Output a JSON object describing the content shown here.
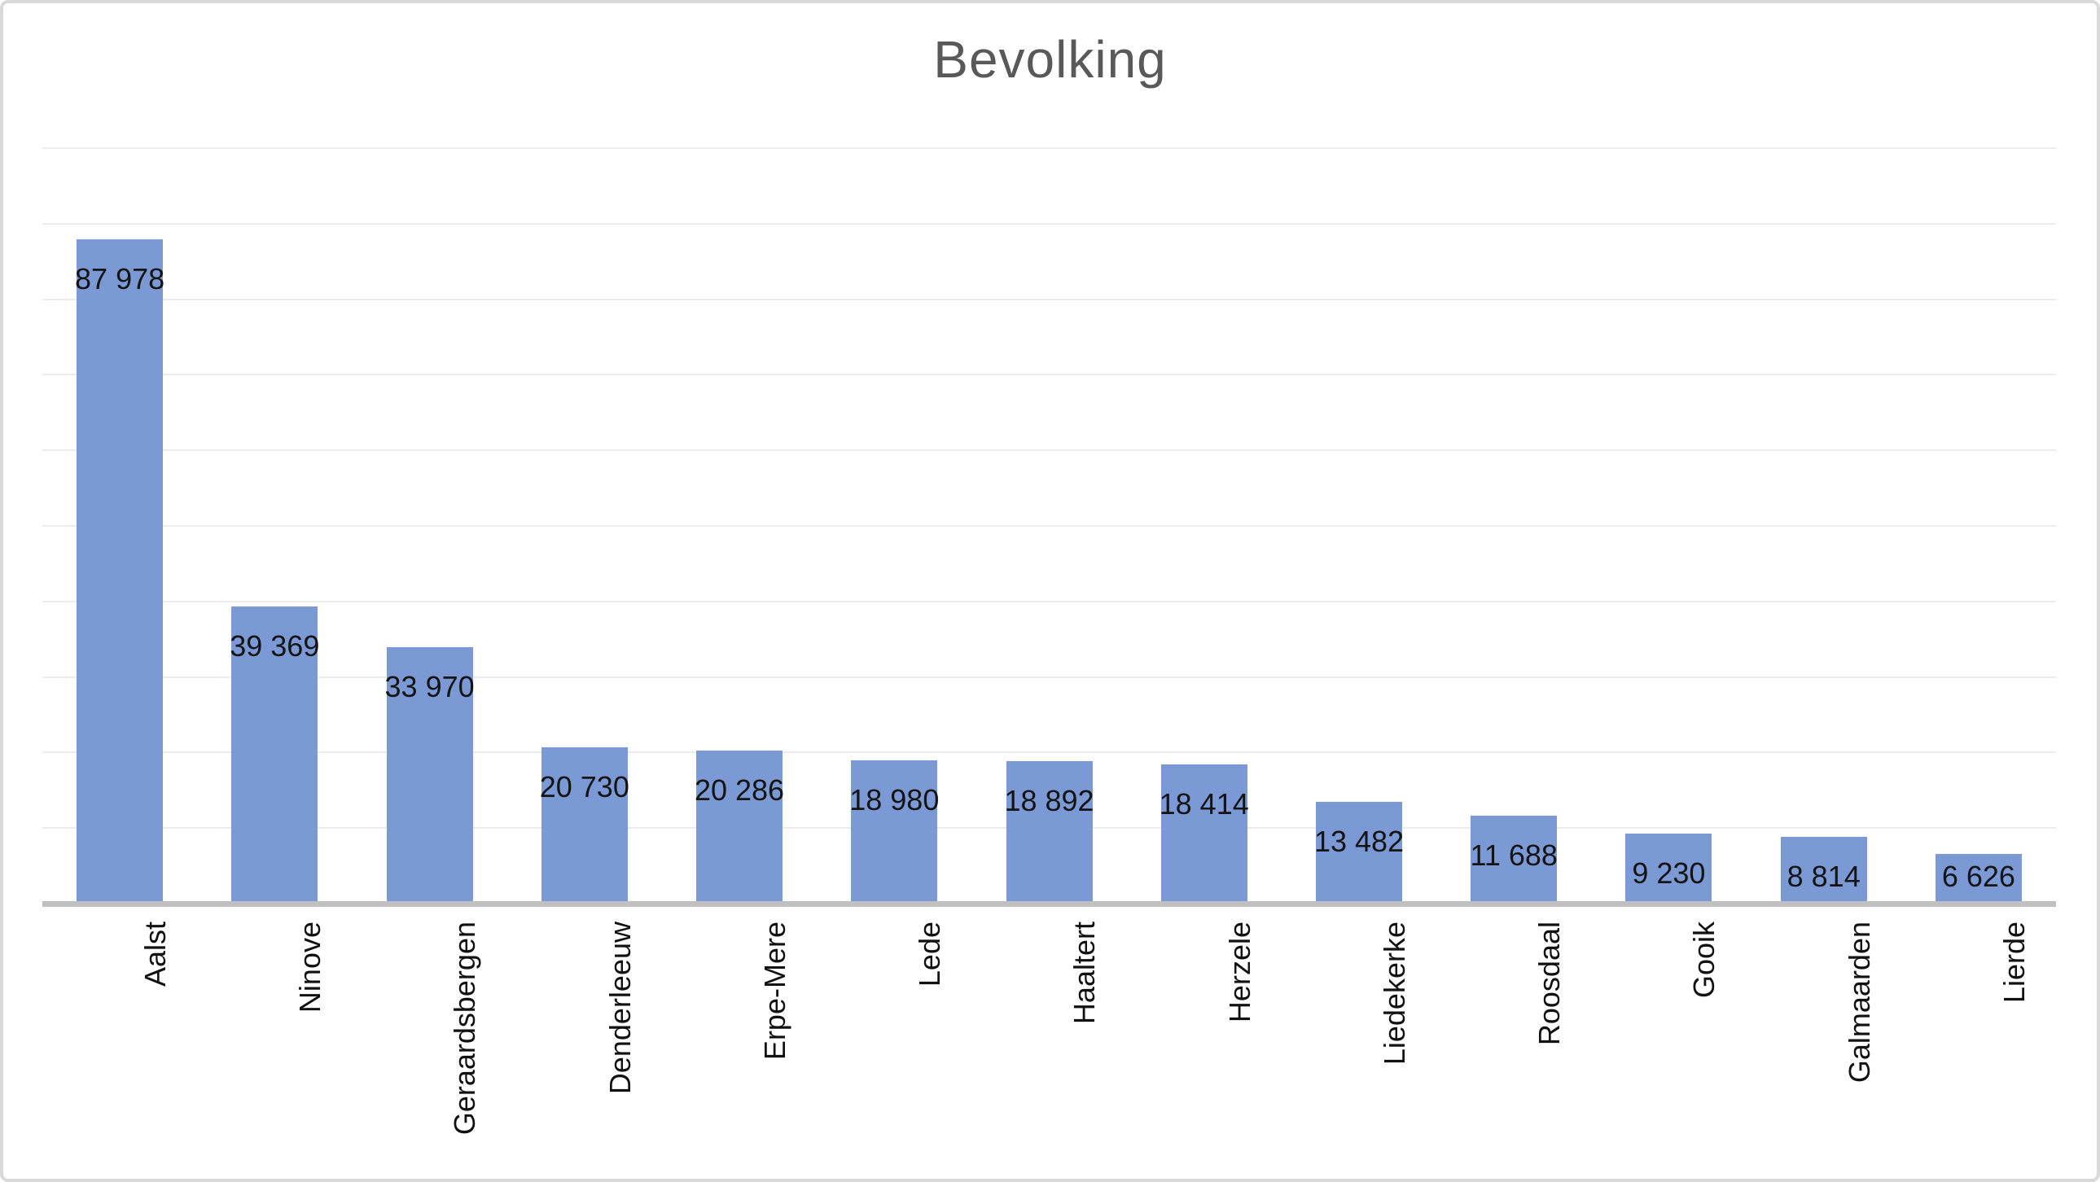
{
  "chart_data": {
    "type": "bar",
    "title": "Bevolking",
    "categories": [
      "Aalst",
      "Ninove",
      "Geraardsbergen",
      "Denderleeuw",
      "Erpe-Mere",
      "Lede",
      "Haaltert",
      "Herzele",
      "Liedekerke",
      "Roosdaal",
      "Gooik",
      "Galmaarden",
      "Lierde"
    ],
    "values": [
      87978,
      39369,
      33970,
      20730,
      20286,
      18980,
      18892,
      18414,
      13482,
      11688,
      9230,
      8814,
      6626
    ],
    "value_labels": [
      "87 978",
      "39 369",
      "33 970",
      "20 730",
      "20 286",
      "18 980",
      "18 892",
      "18 414",
      "13 482",
      "11 688",
      "9 230",
      "8 814",
      "6 626"
    ],
    "xlabel": "",
    "ylabel": "",
    "ylim": [
      0,
      100000
    ],
    "gridline_step": 10000,
    "grid": true,
    "legend": "none",
    "data_label_position": "inside-end",
    "category_label_rotation_deg": -90,
    "colors": {
      "bar": "#7B99D4",
      "gridline": "#ECECEC",
      "axis_line": "#C0C0C0",
      "frame_border": "#D9D9D9",
      "title": "#595959",
      "data_label": "#141414",
      "category_label": "#111111",
      "background": "#FFFFFF"
    }
  }
}
